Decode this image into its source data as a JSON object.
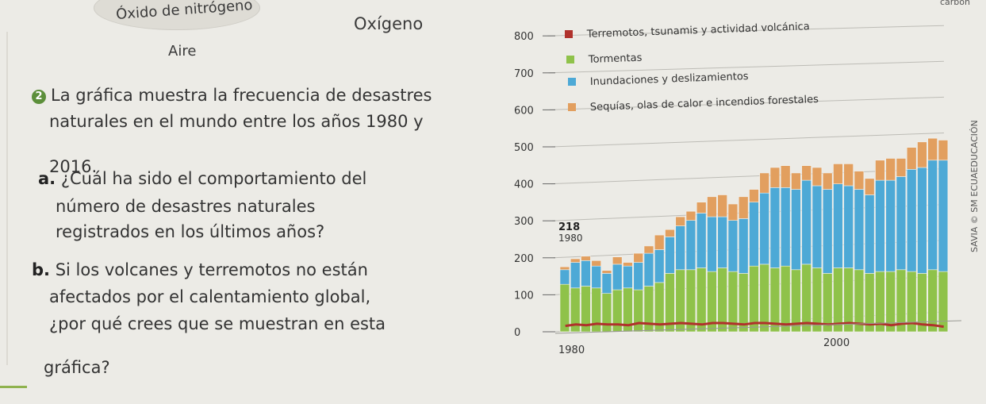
{
  "labels": {
    "nitrogen_oxide": "Óxido de nitrógeno",
    "oxygen": "Oxígeno",
    "air": "Aire",
    "carbon_partial": "carbon"
  },
  "question": {
    "number": "2",
    "intro": [
      "La gráfica muestra la frecuencia de desastres",
      "naturales en el mundo entre los años 1980 y",
      "2016."
    ],
    "a": {
      "letter": "a.",
      "lines": [
        "¿Cuál ha sido el comportamiento del",
        "número de desastres naturales",
        "registrados en los últimos años?"
      ]
    },
    "b": {
      "letter": "b.",
      "lines": [
        "Si los volcanes y terremotos no están",
        "afectados por el calentamiento global,",
        "¿por qué crees que se muestran en esta",
        "gráfica?"
      ]
    }
  },
  "credit": "SAVIA © SM ECUAEDUCACIÓN",
  "colors": {
    "earthquakes": "#b0312c",
    "storms": "#8fc24a",
    "floods": "#4da9d6",
    "droughts": "#e29f5f",
    "text": "#2f2f2f"
  },
  "chart_data": {
    "type": "bar",
    "stacked": true,
    "x_start": 1980,
    "x_end": 2016,
    "x_tick_labels": [
      "1980",
      "2000"
    ],
    "y_ticks": [
      0,
      100,
      200,
      300,
      400,
      500,
      600,
      700,
      800
    ],
    "ylim": [
      0,
      800
    ],
    "annotation": {
      "value": "218",
      "year": "1980"
    },
    "legend": [
      {
        "label": "Terremotos, tsunamis y actividad volcánica",
        "color": "#b0312c"
      },
      {
        "label": "Tormentas",
        "color": "#8fc24a"
      },
      {
        "label": "Inundaciones y deslizamientos",
        "color": "#4da9d6"
      },
      {
        "label": "Sequías, olas de calor e incendios forestales",
        "color": "#e29f5f"
      }
    ],
    "series": [
      {
        "name": "Terremotos, tsunamis y actividad volcánica",
        "values": [
          40,
          50,
          45,
          55,
          50,
          50,
          45,
          60,
          55,
          50,
          55,
          60,
          55,
          50,
          60,
          60,
          55,
          50,
          60,
          60,
          55,
          50,
          55,
          60,
          55,
          50,
          55,
          60,
          55,
          50,
          55,
          45,
          55,
          60,
          50,
          45,
          35
        ]
      },
      {
        "name": "Tormentas",
        "values": [
          130,
          120,
          125,
          120,
          105,
          115,
          120,
          115,
          125,
          135,
          160,
          170,
          170,
          175,
          165,
          175,
          165,
          160,
          180,
          185,
          175,
          180,
          170,
          185,
          175,
          160,
          175,
          175,
          170,
          160,
          165,
          165,
          170,
          165,
          160,
          170,
          165
        ]
      },
      {
        "name": "Inundaciones y deslizamientos",
        "values": [
          40,
          70,
          70,
          60,
          55,
          70,
          60,
          75,
          90,
          90,
          100,
          120,
          135,
          150,
          150,
          140,
          140,
          150,
          175,
          195,
          220,
          215,
          220,
          230,
          225,
          230,
          230,
          225,
          220,
          215,
          250,
          250,
          255,
          280,
          290,
          300,
          305
        ]
      },
      {
        "name": "Sequías, olas de calor e incendios forestales",
        "values": [
          8,
          10,
          12,
          15,
          8,
          20,
          10,
          25,
          20,
          40,
          20,
          25,
          25,
          30,
          55,
          60,
          45,
          60,
          35,
          55,
          55,
          60,
          45,
          40,
          50,
          45,
          55,
          60,
          50,
          45,
          55,
          60,
          50,
          60,
          70,
          60,
          55
        ]
      }
    ]
  }
}
